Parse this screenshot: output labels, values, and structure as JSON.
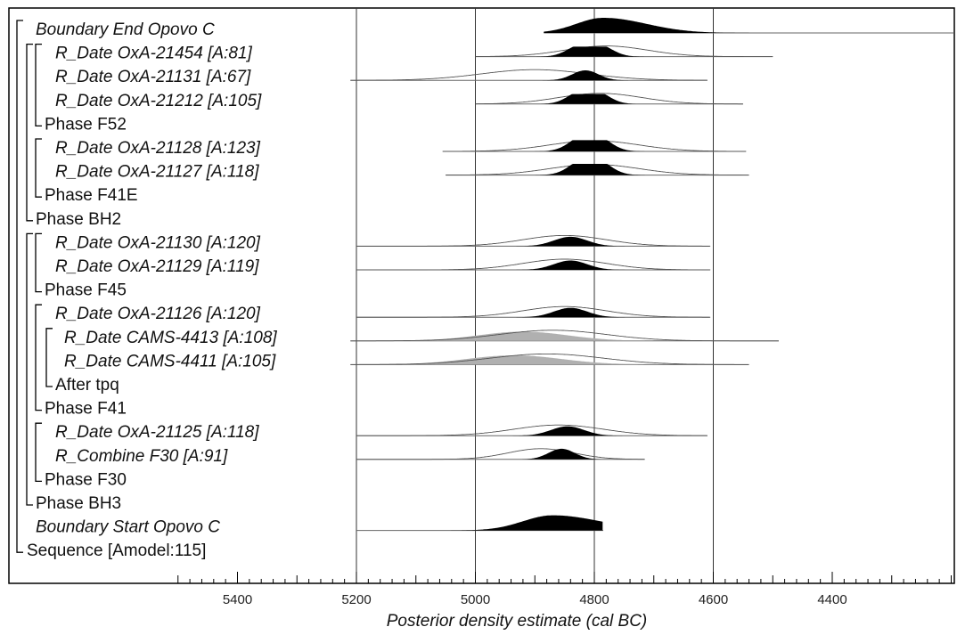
{
  "chart_data": {
    "type": "oxcal-multiplot",
    "xlabel": "Posterior density estimate (cal BC)",
    "x_axis_reversed": true,
    "xlim": [
      5500,
      4200
    ],
    "major_ticks": [
      5400,
      5200,
      5000,
      4800,
      4600,
      4400
    ],
    "minor_tick_step": 20,
    "vertical_gridlines": [
      5200,
      5000,
      4800,
      4600
    ],
    "colors": {
      "posterior": "#000000",
      "prior_outline": "#555555",
      "tpq_fill": "#b0b0b0",
      "line": "#666666"
    },
    "rows": [
      {
        "label": "Boundary End Opovo C",
        "italic": true,
        "indent": 0,
        "kind": "boundary",
        "range": [
          4885,
          4195
        ],
        "posterior_peak": 4785,
        "posterior_width": 45,
        "posterior_height": 1.0
      },
      {
        "label": "R_Date OxA-21454 [A:81]",
        "italic": true,
        "indent": 2,
        "kind": "date",
        "range": [
          5000,
          4500
        ],
        "prior_center": 4780,
        "prior_width": 70,
        "posterior_peaks": [
          4825,
          4790
        ],
        "posterior_width": 22,
        "posterior_height": 0.8
      },
      {
        "label": "R_Date OxA-21131 [A:67]",
        "italic": true,
        "indent": 2,
        "kind": "date",
        "range": [
          5210,
          4610
        ],
        "prior_center": 4900,
        "prior_width": 90,
        "posterior_peaks": [
          4815
        ],
        "posterior_width": 22,
        "posterior_height": 0.8
      },
      {
        "label": "R_Date OxA-21212 [A:105]",
        "italic": true,
        "indent": 2,
        "kind": "date",
        "range": [
          5000,
          4550
        ],
        "prior_center": 4790,
        "prior_width": 70,
        "posterior_peaks": [
          4825,
          4795
        ],
        "posterior_width": 22,
        "posterior_height": 0.8
      },
      {
        "label": "Phase F52",
        "italic": false,
        "indent": 1,
        "kind": "phase"
      },
      {
        "label": "R_Date OxA-21128 [A:123]",
        "italic": true,
        "indent": 2,
        "kind": "date",
        "range": [
          5055,
          4545
        ],
        "prior_center": 4800,
        "prior_width": 75,
        "posterior_peaks": [
          4820,
          4795
        ],
        "posterior_width": 24,
        "posterior_height": 0.9
      },
      {
        "label": "R_Date OxA-21127 [A:118]",
        "italic": true,
        "indent": 2,
        "kind": "date",
        "range": [
          5050,
          4540
        ],
        "prior_center": 4800,
        "prior_width": 75,
        "posterior_peaks": [
          4820,
          4795
        ],
        "posterior_width": 24,
        "posterior_height": 0.9
      },
      {
        "label": "Phase F41E",
        "italic": false,
        "indent": 1,
        "kind": "phase"
      },
      {
        "label": "Phase BH2",
        "italic": false,
        "indent": 0,
        "kind": "phase"
      },
      {
        "label": "R_Date OxA-21130 [A:120]",
        "italic": true,
        "indent": 2,
        "kind": "date",
        "range": [
          5200,
          4605
        ],
        "prior_center": 4850,
        "prior_width": 70,
        "posterior_peaks": [
          4840
        ],
        "posterior_width": 28,
        "posterior_height": 0.75
      },
      {
        "label": "R_Date OxA-21129 [A:119]",
        "italic": true,
        "indent": 2,
        "kind": "date",
        "range": [
          5200,
          4605
        ],
        "prior_center": 4850,
        "prior_width": 70,
        "posterior_peaks": [
          4840
        ],
        "posterior_width": 28,
        "posterior_height": 0.75
      },
      {
        "label": "Phase F45",
        "italic": false,
        "indent": 1,
        "kind": "phase"
      },
      {
        "label": "R_Date OxA-21126 [A:120]",
        "italic": true,
        "indent": 2,
        "kind": "date",
        "range": [
          5200,
          4605
        ],
        "prior_center": 4850,
        "prior_width": 70,
        "posterior_peaks": [
          4840
        ],
        "posterior_width": 28,
        "posterior_height": 0.75
      },
      {
        "label": "R_Date CAMS-4413 [A:108]",
        "italic": true,
        "indent": 3,
        "kind": "tpq",
        "range": [
          5210,
          4490
        ],
        "prior_center": 4870,
        "prior_width": 90,
        "posterior_center": 4920,
        "posterior_width": 75,
        "posterior_height": 0.8
      },
      {
        "label": "R_Date CAMS-4411 [A:105]",
        "italic": true,
        "indent": 3,
        "kind": "tpq",
        "range": [
          5210,
          4540
        ],
        "prior_center": 4880,
        "prior_width": 95,
        "posterior_center": 4935,
        "posterior_width": 80,
        "posterior_height": 0.8
      },
      {
        "label": "After tpq",
        "italic": false,
        "indent": 2,
        "kind": "phase"
      },
      {
        "label": "Phase F41",
        "italic": false,
        "indent": 1,
        "kind": "phase"
      },
      {
        "label": "R_Date OxA-21125 [A:118]",
        "italic": true,
        "indent": 2,
        "kind": "date",
        "range": [
          5200,
          4610
        ],
        "prior_center": 4860,
        "prior_width": 75,
        "posterior_peaks": [
          4845
        ],
        "posterior_width": 28,
        "posterior_height": 0.75
      },
      {
        "label": "R_Combine F30 [A:91]",
        "italic": true,
        "indent": 2,
        "kind": "date",
        "range": [
          5200,
          4715
        ],
        "prior_center": 4890,
        "prior_width": 55,
        "posterior_peaks": [
          4855
        ],
        "posterior_width": 22,
        "posterior_height": 0.85
      },
      {
        "label": "Phase F30",
        "italic": false,
        "indent": 1,
        "kind": "phase"
      },
      {
        "label": "Phase BH3",
        "italic": false,
        "indent": 0,
        "kind": "phase"
      },
      {
        "label": "Boundary Start Opovo C",
        "italic": true,
        "indent": 0,
        "kind": "boundary",
        "range": [
          5200,
          4785
        ],
        "posterior_peak": 4870,
        "posterior_width": 50,
        "posterior_height": 1.0
      },
      {
        "label": "Sequence [Amodel:115]",
        "italic": false,
        "indent": -1,
        "kind": "phase"
      }
    ]
  }
}
